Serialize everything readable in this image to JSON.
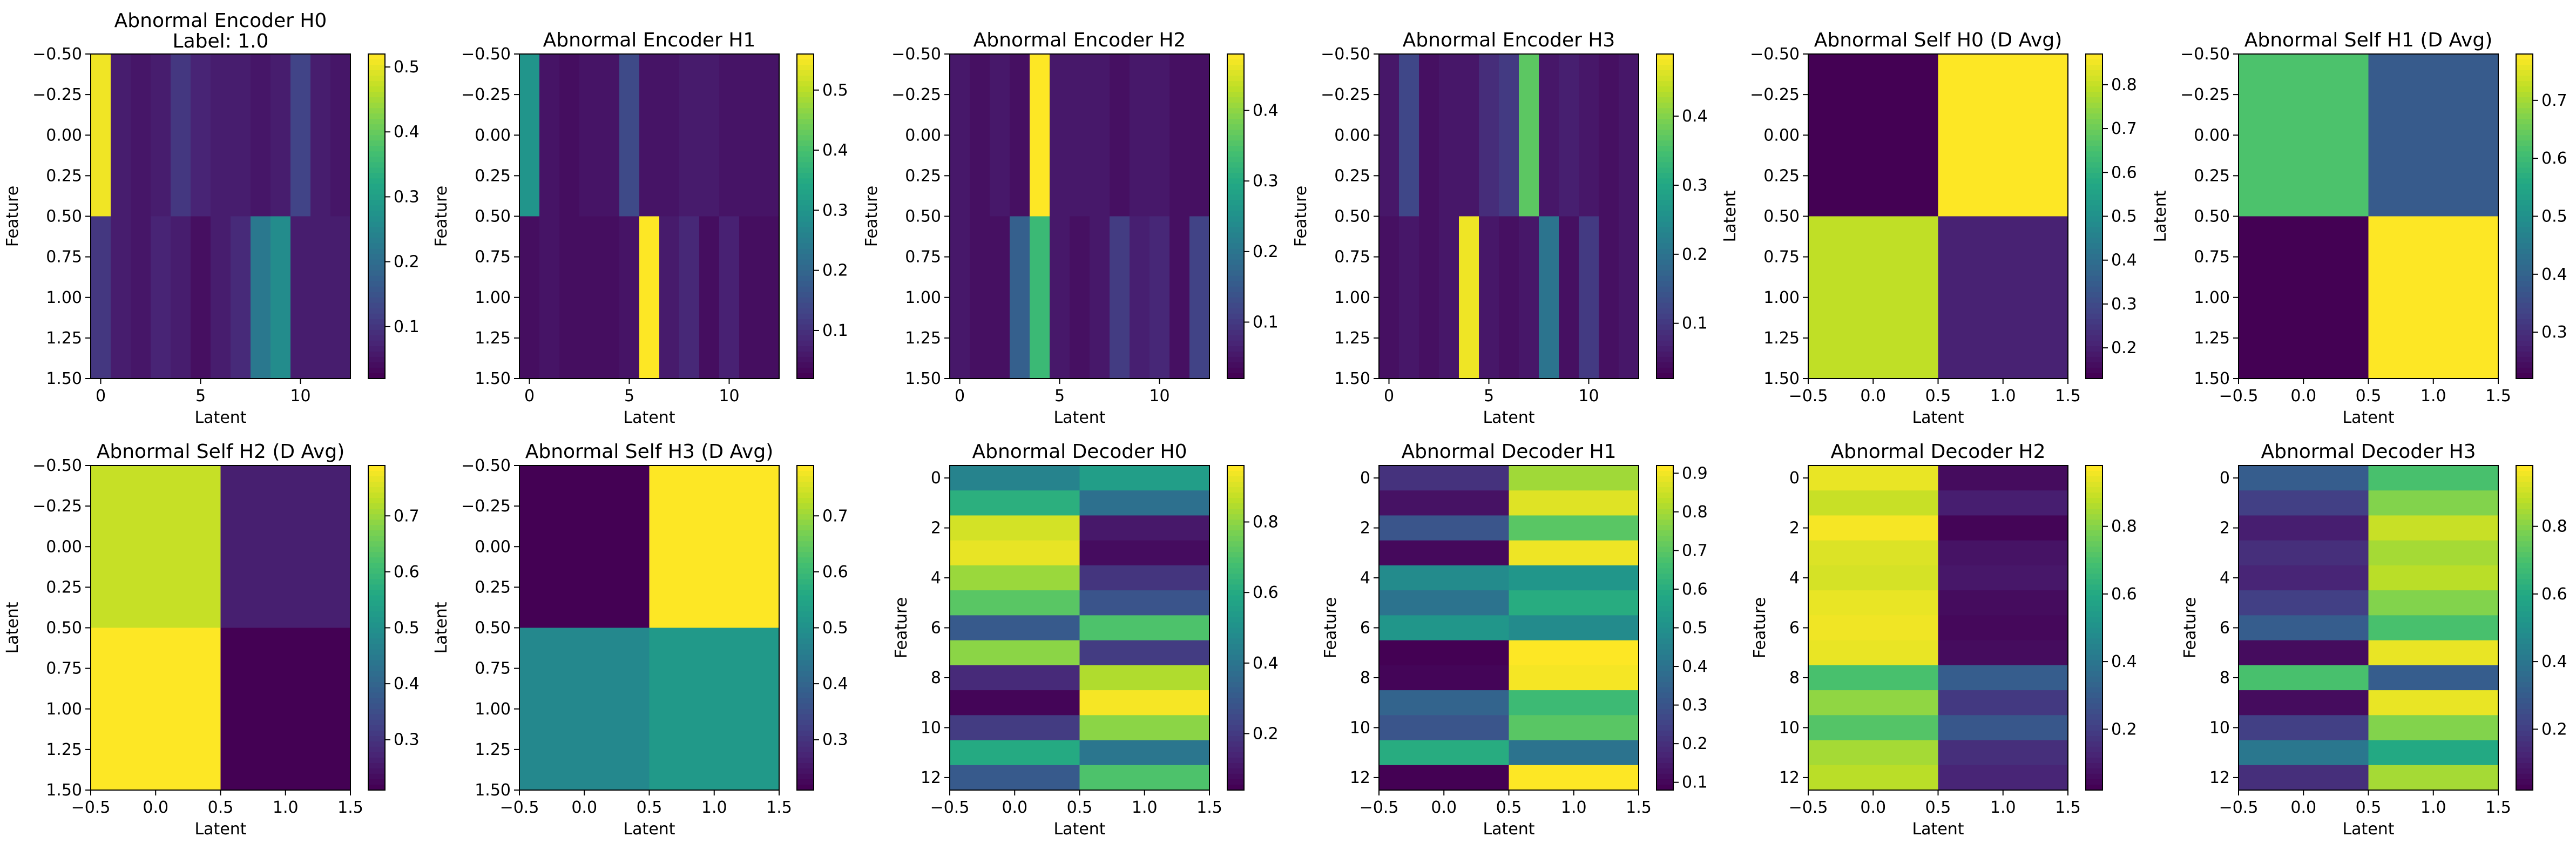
{
  "chart_data": [
    {
      "type": "heatmap",
      "title": "Abnormal Encoder H0",
      "subtitle": "Label: 1.0",
      "xlabel": "Latent",
      "ylabel": "Feature",
      "x_ticks": [
        "0",
        "5",
        "10"
      ],
      "y_ticks": [
        "−0.50",
        "−0.25",
        "0.00",
        "0.25",
        "0.50",
        "0.75",
        "1.00",
        "1.25",
        "1.50"
      ],
      "colorbar_ticks": [
        "0.1",
        "0.2",
        "0.3",
        "0.4",
        "0.5"
      ],
      "vmin": 0.02,
      "vmax": 0.52,
      "values": [
        [
          0.51,
          0.06,
          0.05,
          0.06,
          0.1,
          0.07,
          0.06,
          0.06,
          0.05,
          0.06,
          0.12,
          0.06,
          0.05
        ],
        [
          0.1,
          0.06,
          0.05,
          0.07,
          0.06,
          0.04,
          0.06,
          0.08,
          0.22,
          0.26,
          0.06,
          0.06,
          0.06
        ]
      ]
    },
    {
      "type": "heatmap",
      "title": "Abnormal Encoder H1",
      "xlabel": "Latent",
      "ylabel": "Feature",
      "x_ticks": [
        "0",
        "5",
        "10"
      ],
      "y_ticks": [
        "−0.50",
        "−0.25",
        "0.00",
        "0.25",
        "0.50",
        "0.75",
        "1.00",
        "1.25",
        "1.50"
      ],
      "colorbar_ticks": [
        "0.1",
        "0.2",
        "0.3",
        "0.4",
        "0.5"
      ],
      "vmin": 0.02,
      "vmax": 0.56,
      "values": [
        [
          0.3,
          0.05,
          0.04,
          0.05,
          0.05,
          0.14,
          0.05,
          0.05,
          0.06,
          0.06,
          0.05,
          0.05,
          0.05
        ],
        [
          0.04,
          0.05,
          0.04,
          0.04,
          0.04,
          0.05,
          0.56,
          0.06,
          0.08,
          0.04,
          0.07,
          0.04,
          0.04
        ]
      ]
    },
    {
      "type": "heatmap",
      "title": "Abnormal Encoder H2",
      "xlabel": "Latent",
      "ylabel": "Feature",
      "x_ticks": [
        "0",
        "5",
        "10"
      ],
      "y_ticks": [
        "−0.50",
        "−0.25",
        "0.00",
        "0.25",
        "0.50",
        "0.75",
        "1.00",
        "1.25",
        "1.50"
      ],
      "colorbar_ticks": [
        "0.1",
        "0.2",
        "0.3",
        "0.4"
      ],
      "vmin": 0.02,
      "vmax": 0.48,
      "values": [
        [
          0.05,
          0.04,
          0.05,
          0.04,
          0.48,
          0.05,
          0.05,
          0.05,
          0.04,
          0.05,
          0.05,
          0.04,
          0.04
        ],
        [
          0.05,
          0.04,
          0.04,
          0.16,
          0.33,
          0.05,
          0.04,
          0.05,
          0.1,
          0.06,
          0.07,
          0.04,
          0.11
        ]
      ]
    },
    {
      "type": "heatmap",
      "title": "Abnormal Encoder H3",
      "xlabel": "Latent",
      "ylabel": "Feature",
      "x_ticks": [
        "0",
        "5",
        "10"
      ],
      "y_ticks": [
        "−0.50",
        "−0.25",
        "0.00",
        "0.25",
        "0.50",
        "0.75",
        "1.00",
        "1.25",
        "1.50"
      ],
      "colorbar_ticks": [
        "0.1",
        "0.2",
        "0.3",
        "0.4"
      ],
      "vmin": 0.02,
      "vmax": 0.49,
      "values": [
        [
          0.05,
          0.12,
          0.04,
          0.05,
          0.05,
          0.08,
          0.1,
          0.37,
          0.05,
          0.06,
          0.05,
          0.04,
          0.05
        ],
        [
          0.04,
          0.05,
          0.04,
          0.05,
          0.48,
          0.05,
          0.04,
          0.05,
          0.2,
          0.04,
          0.1,
          0.04,
          0.05
        ]
      ]
    },
    {
      "type": "heatmap",
      "title": "Abnormal Self H0 (D Avg)",
      "xlabel": "Latent",
      "ylabel": "Latent",
      "x_ticks": [
        "−0.5",
        "0.0",
        "0.5",
        "1.0",
        "1.5"
      ],
      "y_ticks": [
        "−0.50",
        "−0.25",
        "0.00",
        "0.25",
        "0.50",
        "0.75",
        "1.00",
        "1.25",
        "1.50"
      ],
      "colorbar_ticks": [
        "0.2",
        "0.3",
        "0.4",
        "0.5",
        "0.6",
        "0.7",
        "0.8"
      ],
      "vmin": 0.13,
      "vmax": 0.87,
      "values": [
        [
          0.13,
          0.87
        ],
        [
          0.8,
          0.2
        ]
      ]
    },
    {
      "type": "heatmap",
      "title": "Abnormal Self H1 (D Avg)",
      "xlabel": "Latent",
      "ylabel": "Latent",
      "x_ticks": [
        "−0.5",
        "0.0",
        "0.5",
        "1.0",
        "1.5"
      ],
      "y_ticks": [
        "−0.50",
        "−0.25",
        "0.00",
        "0.25",
        "0.50",
        "0.75",
        "1.00",
        "1.25",
        "1.50"
      ],
      "colorbar_ticks": [
        "0.3",
        "0.4",
        "0.5",
        "0.6",
        "0.7"
      ],
      "vmin": 0.22,
      "vmax": 0.78,
      "values": [
        [
          0.62,
          0.38
        ],
        [
          0.22,
          0.78
        ]
      ]
    },
    {
      "type": "heatmap",
      "title": "Abnormal Self H2 (D Avg)",
      "xlabel": "Latent",
      "ylabel": "Latent",
      "x_ticks": [
        "−0.5",
        "0.0",
        "0.5",
        "1.0",
        "1.5"
      ],
      "y_ticks": [
        "−0.50",
        "−0.25",
        "0.00",
        "0.25",
        "0.50",
        "0.75",
        "1.00",
        "1.25",
        "1.50"
      ],
      "colorbar_ticks": [
        "0.3",
        "0.4",
        "0.5",
        "0.6",
        "0.7"
      ],
      "vmin": 0.21,
      "vmax": 0.79,
      "values": [
        [
          0.74,
          0.26
        ],
        [
          0.79,
          0.21
        ]
      ]
    },
    {
      "type": "heatmap",
      "title": "Abnormal Self H3 (D Avg)",
      "xlabel": "Latent",
      "ylabel": "Latent",
      "x_ticks": [
        "−0.5",
        "0.0",
        "0.5",
        "1.0",
        "1.5"
      ],
      "y_ticks": [
        "−0.50",
        "−0.25",
        "0.00",
        "0.25",
        "0.50",
        "0.75",
        "1.00",
        "1.25",
        "1.50"
      ],
      "colorbar_ticks": [
        "0.3",
        "0.4",
        "0.5",
        "0.6",
        "0.7"
      ],
      "vmin": 0.21,
      "vmax": 0.79,
      "values": [
        [
          0.21,
          0.79
        ],
        [
          0.48,
          0.52
        ]
      ]
    },
    {
      "type": "heatmap",
      "title": "Abnormal Decoder H0",
      "xlabel": "Latent",
      "ylabel": "Feature",
      "x_ticks": [
        "−0.5",
        "0.0",
        "0.5",
        "1.0",
        "1.5"
      ],
      "y_ticks": [
        "0",
        "2",
        "4",
        "6",
        "8",
        "10",
        "12"
      ],
      "colorbar_ticks": [
        "0.2",
        "0.4",
        "0.6",
        "0.8"
      ],
      "vmin": 0.04,
      "vmax": 0.96,
      "values": [
        [
          0.45,
          0.55
        ],
        [
          0.62,
          0.38
        ],
        [
          0.9,
          0.1
        ],
        [
          0.93,
          0.07
        ],
        [
          0.82,
          0.18
        ],
        [
          0.72,
          0.28
        ],
        [
          0.3,
          0.7
        ],
        [
          0.8,
          0.2
        ],
        [
          0.15,
          0.85
        ],
        [
          0.05,
          0.95
        ],
        [
          0.2,
          0.8
        ],
        [
          0.6,
          0.4
        ],
        [
          0.3,
          0.7
        ]
      ]
    },
    {
      "type": "heatmap",
      "title": "Abnormal Decoder H1",
      "xlabel": "Latent",
      "ylabel": "Feature",
      "x_ticks": [
        "−0.5",
        "0.0",
        "0.5",
        "1.0",
        "1.5"
      ],
      "y_ticks": [
        "0",
        "2",
        "4",
        "6",
        "8",
        "10",
        "12"
      ],
      "colorbar_ticks": [
        "0.1",
        "0.2",
        "0.3",
        "0.4",
        "0.5",
        "0.6",
        "0.7",
        "0.8",
        "0.9"
      ],
      "vmin": 0.08,
      "vmax": 0.92,
      "values": [
        [
          0.2,
          0.8
        ],
        [
          0.12,
          0.88
        ],
        [
          0.3,
          0.7
        ],
        [
          0.1,
          0.9
        ],
        [
          0.48,
          0.52
        ],
        [
          0.4,
          0.6
        ],
        [
          0.52,
          0.48
        ],
        [
          0.08,
          0.92
        ],
        [
          0.09,
          0.91
        ],
        [
          0.35,
          0.65
        ],
        [
          0.3,
          0.7
        ],
        [
          0.6,
          0.4
        ],
        [
          0.08,
          0.92
        ]
      ]
    },
    {
      "type": "heatmap",
      "title": "Abnormal Decoder H2",
      "xlabel": "Latent",
      "ylabel": "Feature",
      "x_ticks": [
        "−0.5",
        "0.0",
        "0.5",
        "1.0",
        "1.5"
      ],
      "y_ticks": [
        "0",
        "2",
        "4",
        "6",
        "8",
        "10",
        "12"
      ],
      "colorbar_ticks": [
        "0.2",
        "0.4",
        "0.6",
        "0.8"
      ],
      "vmin": 0.02,
      "vmax": 0.98,
      "values": [
        [
          0.95,
          0.05
        ],
        [
          0.9,
          0.1
        ],
        [
          0.97,
          0.03
        ],
        [
          0.93,
          0.07
        ],
        [
          0.92,
          0.08
        ],
        [
          0.95,
          0.05
        ],
        [
          0.96,
          0.04
        ],
        [
          0.95,
          0.05
        ],
        [
          0.7,
          0.3
        ],
        [
          0.82,
          0.18
        ],
        [
          0.72,
          0.28
        ],
        [
          0.85,
          0.15
        ],
        [
          0.88,
          0.12
        ]
      ]
    },
    {
      "type": "heatmap",
      "title": "Abnormal Decoder H3",
      "xlabel": "Latent",
      "ylabel": "Feature",
      "x_ticks": [
        "−0.5",
        "0.0",
        "0.5",
        "1.0",
        "1.5"
      ],
      "y_ticks": [
        "0",
        "2",
        "4",
        "6",
        "8",
        "10",
        "12"
      ],
      "colorbar_ticks": [
        "0.2",
        "0.4",
        "0.6",
        "0.8"
      ],
      "vmin": 0.02,
      "vmax": 0.98,
      "values": [
        [
          0.3,
          0.7
        ],
        [
          0.2,
          0.8
        ],
        [
          0.1,
          0.9
        ],
        [
          0.15,
          0.85
        ],
        [
          0.12,
          0.88
        ],
        [
          0.2,
          0.8
        ],
        [
          0.3,
          0.7
        ],
        [
          0.05,
          0.95
        ],
        [
          0.7,
          0.3
        ],
        [
          0.05,
          0.95
        ],
        [
          0.2,
          0.8
        ],
        [
          0.4,
          0.6
        ],
        [
          0.15,
          0.85
        ]
      ]
    }
  ]
}
